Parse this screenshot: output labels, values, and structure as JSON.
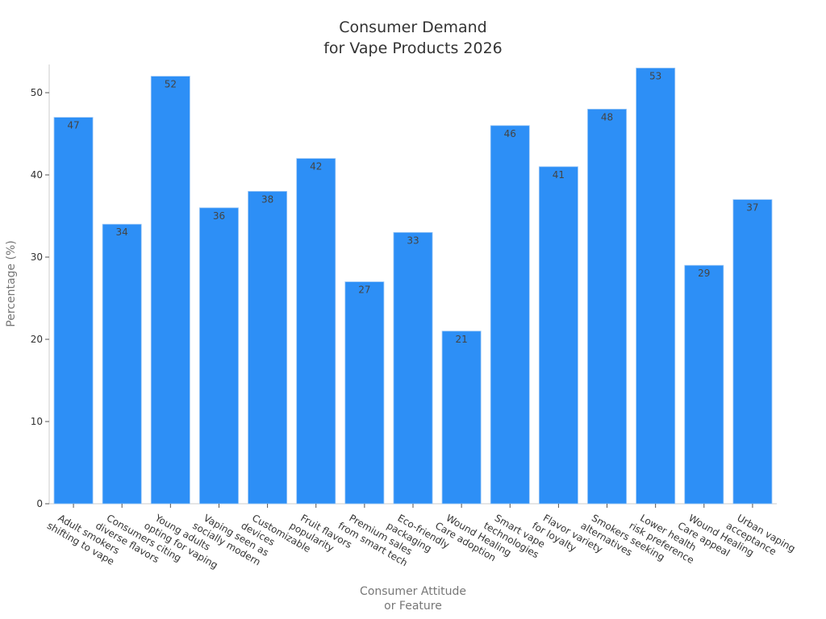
{
  "chart_data": {
    "type": "bar",
    "title": [
      "Consumer Demand",
      "for Vape Products 2026"
    ],
    "xlabel": [
      "Consumer Attitude",
      "or Feature"
    ],
    "ylabel": "Percentage (%)",
    "ylim": [
      0,
      55
    ],
    "yticks": [
      0,
      10,
      20,
      30,
      40,
      50
    ],
    "grid": false,
    "bar_color": "#2d8ff6",
    "categories": [
      [
        "Adult smokers",
        "shifting to vape"
      ],
      [
        "Consumers citing",
        "diverse flavors"
      ],
      [
        "Young adults",
        "opting for vaping"
      ],
      [
        "Vaping seen as",
        "socially modern"
      ],
      [
        "Customizable",
        "devices"
      ],
      [
        "Fruit flavors",
        "popularity"
      ],
      [
        "Premium sales",
        "from smart tech"
      ],
      [
        "Eco-friendly",
        "packaging"
      ],
      [
        "Wound Healing",
        "Care adoption"
      ],
      [
        "Smart vape",
        "technologies"
      ],
      [
        "Flavor variety",
        "for loyalty"
      ],
      [
        "Smokers seeking",
        "alternatives"
      ],
      [
        "Lower health",
        "risk preference"
      ],
      [
        "Wound Healing",
        "Care appeal"
      ],
      [
        "Urban vaping",
        "acceptance"
      ]
    ],
    "values": [
      47,
      34,
      52,
      36,
      38,
      42,
      27,
      33,
      21,
      46,
      41,
      48,
      53,
      29,
      37
    ]
  }
}
